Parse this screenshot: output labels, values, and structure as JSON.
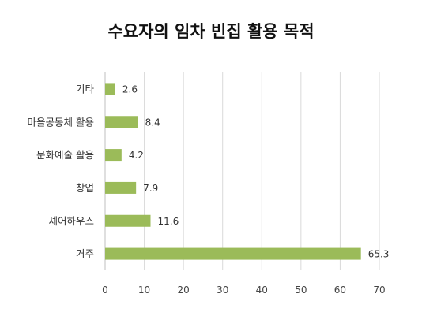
{
  "chart_data": {
    "type": "bar",
    "orientation": "horizontal",
    "title": "수요자의 임차 빈집 활용 목적",
    "categories": [
      "기타",
      "마을공동체 활용",
      "문화예술 활용",
      "창업",
      "셰어하우스",
      "거주"
    ],
    "values": [
      2.6,
      8.4,
      4.2,
      7.9,
      11.6,
      65.3
    ],
    "value_labels": [
      "2.6",
      "8.4",
      "4.2",
      "7.9",
      "11.6",
      "65.3"
    ],
    "xlim": [
      0,
      70
    ],
    "x_ticks": [
      "0",
      "10",
      "20",
      "30",
      "40",
      "50",
      "60",
      "70"
    ],
    "xlabel": "",
    "ylabel": "",
    "grid": "vertical",
    "legend": "none",
    "bar_color": "#9bbb59"
  }
}
